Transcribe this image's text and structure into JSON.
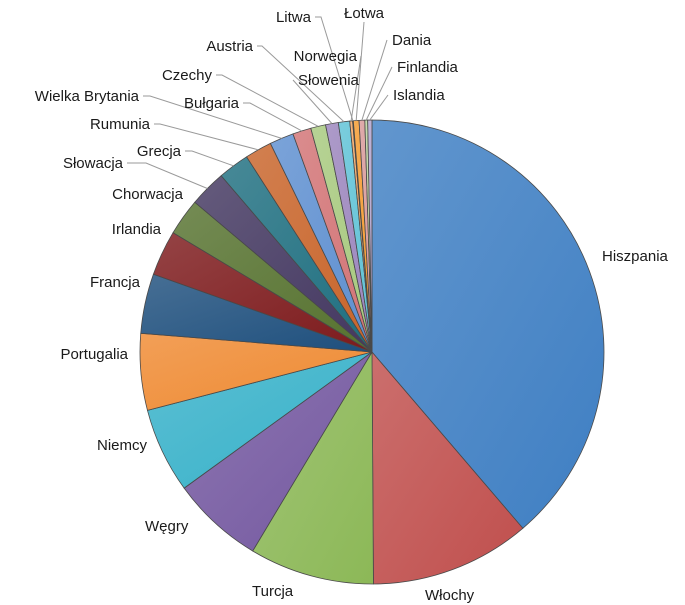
{
  "chart_data": {
    "type": "pie",
    "title": "",
    "legend": "none",
    "labels_position": "outside",
    "start_angle": "12 o'clock",
    "direction": "clockwise",
    "slices": [
      {
        "label": "Hiszpania",
        "value": 39.2,
        "color": "#3f7fc3"
      },
      {
        "label": "Włochy",
        "value": 11.3,
        "color": "#c04f4d"
      },
      {
        "label": "Turcja",
        "value": 8.8,
        "color": "#8cb857"
      },
      {
        "label": "Węgry",
        "value": 6.5,
        "color": "#7458a0"
      },
      {
        "label": "Niemcy",
        "value": 6.0,
        "color": "#37b1c9"
      },
      {
        "label": "Portugalia",
        "value": 5.4,
        "color": "#ef8a32"
      },
      {
        "label": "Francja",
        "value": 4.2,
        "color": "#1e4f7d"
      },
      {
        "label": "Irlandia",
        "value": 3.2,
        "color": "#7d1a1c"
      },
      {
        "label": "Chorwacja",
        "value": 2.6,
        "color": "#56722f"
      },
      {
        "label": "Słowacja",
        "value": 2.6,
        "color": "#433760"
      },
      {
        "label": "Grecja",
        "value": 2.2,
        "color": "#1f6f80"
      },
      {
        "label": "Rumunia",
        "value": 1.9,
        "color": "#c8642a"
      },
      {
        "label": "Wielka Brytania",
        "value": 1.7,
        "color": "#5e8fd0"
      },
      {
        "label": "Bułgaria",
        "value": 1.3,
        "color": "#d27375"
      },
      {
        "label": "Czechy",
        "value": 1.05,
        "color": "#a7c97e"
      },
      {
        "label": "Słowenia",
        "value": 0.9,
        "color": "#9b85bd"
      },
      {
        "label": "Austria",
        "value": 0.8,
        "color": "#5fc2d6"
      },
      {
        "label": "Norwegia",
        "value": 0.2,
        "color": "#f5a560"
      },
      {
        "label": "Litwa",
        "value": 0.05,
        "color": "#9dbbe2"
      },
      {
        "label": "Łotwa",
        "value": 0.4,
        "color": "#f59b2f"
      },
      {
        "label": "Dania",
        "value": 0.4,
        "color": "#d99a9a"
      },
      {
        "label": "Finlandia",
        "value": 0.2,
        "color": "#bcd49f"
      },
      {
        "label": "Islandia",
        "value": 0.3,
        "color": "#b4a6cf"
      }
    ]
  }
}
